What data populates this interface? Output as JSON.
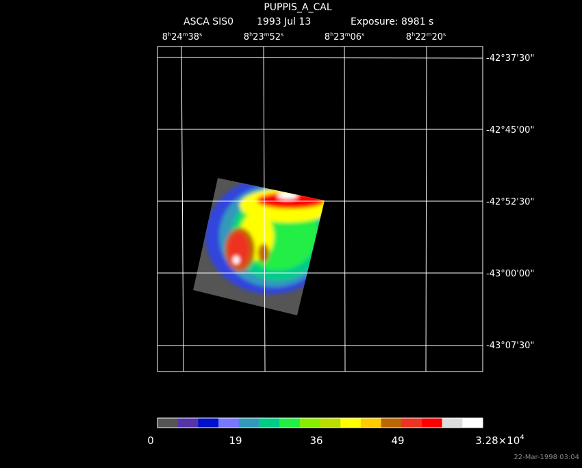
{
  "header": {
    "title": "PUPPIS_A_CAL",
    "instrument": "ASCA SIS0",
    "date": "1993 Jul 13",
    "exposure": "Exposure:  8981 s"
  },
  "ra_labels": [
    [
      "8",
      "h",
      "24",
      "m",
      "38",
      "s"
    ],
    [
      "8",
      "h",
      "23",
      "m",
      "52",
      "s"
    ],
    [
      "8",
      "h",
      "23",
      "m",
      "06",
      "s"
    ],
    [
      "8",
      "h",
      "22",
      "m",
      "20",
      "s"
    ]
  ],
  "dec_labels": [
    "-42°37'30\"",
    "-42°45'00\"",
    "-42°52'30\"",
    "-43°00'00\"",
    "-43°07'30\""
  ],
  "colorbar": {
    "colors": [
      "#555555",
      "#5533aa",
      "#0011cc",
      "#7777ff",
      "#3399bb",
      "#00cc88",
      "#22ee44",
      "#88ee00",
      "#bbdd00",
      "#ffff00",
      "#ffcc00",
      "#bb6600",
      "#ee3322",
      "#ff0000",
      "#dddddd",
      "#ffffff"
    ],
    "labels": [
      "0",
      "19",
      "36",
      "49",
      [
        "3.28×10",
        "4"
      ]
    ]
  },
  "timestamp": "22-Mar-1998 03:04"
}
